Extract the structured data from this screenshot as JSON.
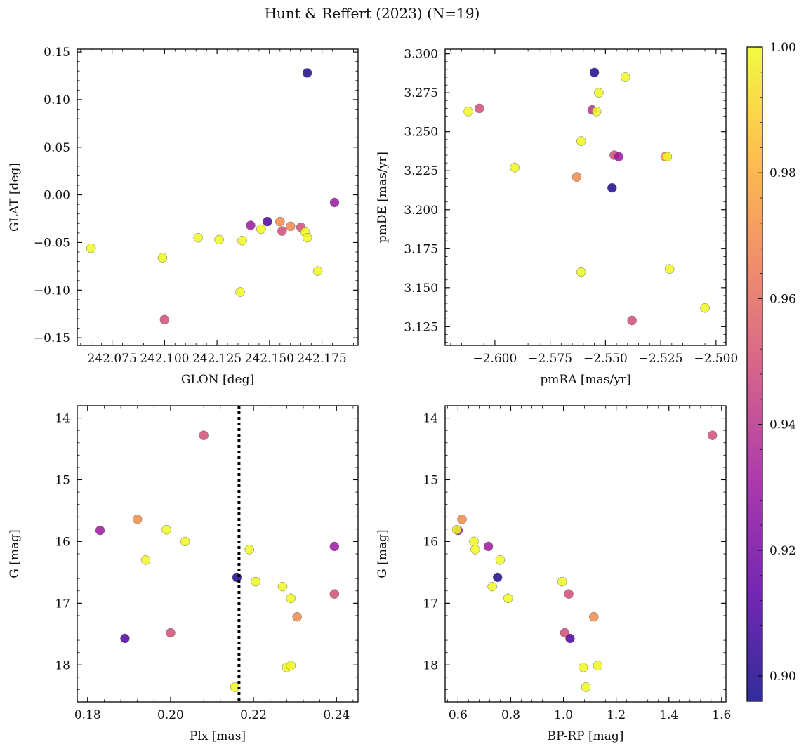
{
  "figure": {
    "title": "Hunt & Reffert (2023) (N=19)"
  },
  "colorbar": {
    "min": 0.896,
    "max": 1.0,
    "ticks": [
      0.9,
      0.92,
      0.94,
      0.96,
      0.98,
      1.0
    ],
    "tick_labels": [
      "0.90",
      "0.92",
      "0.94",
      "0.96",
      "0.98",
      "1.00"
    ],
    "colormap": "plasma",
    "stops": [
      "#0d0887",
      "#5c01a6",
      "#9c179e",
      "#cc4778",
      "#ed7953",
      "#fdb42f",
      "#f0f921"
    ]
  },
  "chart_data": [
    {
      "type": "scatter",
      "xlabel": "GLON [deg]",
      "ylabel": "GLAT [deg]",
      "xlim": [
        242.0584,
        242.1922
      ],
      "ylim": [
        -0.158,
        0.153
      ],
      "xticks": [
        242.075,
        242.1,
        242.125,
        242.15,
        242.175
      ],
      "xtick_labels": [
        "242.075",
        "242.100",
        "242.125",
        "242.150",
        "242.175"
      ],
      "yticks": [
        -0.15,
        -0.1,
        -0.05,
        0.0,
        0.05,
        0.1,
        0.15
      ],
      "ytick_labels": [
        "−0.15",
        "−0.10",
        "−0.05",
        "0.00",
        "0.05",
        "0.10",
        "0.15"
      ],
      "x": [
        242.168,
        242.065,
        242.099,
        242.116,
        242.126,
        242.137,
        242.136,
        242.146,
        242.149,
        242.141,
        242.155,
        242.156,
        242.16,
        242.165,
        242.167,
        242.168,
        242.173,
        242.181,
        242.1
      ],
      "y": [
        0.128,
        -0.056,
        -0.066,
        -0.045,
        -0.047,
        -0.048,
        -0.102,
        -0.036,
        -0.028,
        -0.032,
        -0.028,
        -0.038,
        -0.033,
        -0.034,
        -0.039,
        -0.045,
        -0.08,
        -0.008,
        -0.131
      ],
      "c": [
        0.9,
        1.0,
        1.0,
        1.0,
        1.0,
        1.0,
        1.0,
        1.0,
        0.91,
        0.93,
        0.97,
        0.95,
        0.97,
        0.95,
        1.0,
        1.0,
        1.0,
        0.93,
        0.95
      ]
    },
    {
      "type": "scatter",
      "xlabel": "pmRA [mas/yr]",
      "ylabel": "pmDE [mas/yr]",
      "xlim": [
        -2.6225,
        -2.4955
      ],
      "ylim": [
        3.113,
        3.303
      ],
      "xticks": [
        -2.6,
        -2.575,
        -2.55,
        -2.525,
        -2.5
      ],
      "xtick_labels": [
        "−2.600",
        "−2.575",
        "−2.550",
        "−2.525",
        "−2.500"
      ],
      "yticks": [
        3.125,
        3.15,
        3.175,
        3.2,
        3.225,
        3.25,
        3.275,
        3.3
      ],
      "ytick_labels": [
        "3.125",
        "3.150",
        "3.175",
        "3.200",
        "3.225",
        "3.250",
        "3.275",
        "3.300"
      ],
      "x": [
        -2.555,
        -2.612,
        -2.607,
        -2.591,
        -2.561,
        -2.556,
        -2.553,
        -2.554,
        -2.541,
        -2.546,
        -2.544,
        -2.523,
        -2.522,
        -2.563,
        -2.547,
        -2.561,
        -2.521,
        -2.505,
        -2.538
      ],
      "y": [
        3.288,
        3.263,
        3.265,
        3.227,
        3.244,
        3.264,
        3.275,
        3.263,
        3.285,
        3.235,
        3.234,
        3.234,
        3.234,
        3.221,
        3.214,
        3.16,
        3.162,
        3.137,
        3.129
      ],
      "c": [
        0.9,
        1.0,
        0.95,
        1.0,
        1.0,
        0.94,
        1.0,
        1.0,
        1.0,
        0.95,
        0.93,
        0.97,
        1.0,
        0.97,
        0.9,
        1.0,
        1.0,
        1.0,
        0.95
      ]
    },
    {
      "type": "scatter",
      "xlabel": "Plx [mas]",
      "ylabel": "G [mag]",
      "xlim": [
        0.1775,
        0.2452
      ],
      "ylim": [
        18.6,
        13.8
      ],
      "yinverted": true,
      "xticks": [
        0.18,
        0.2,
        0.22,
        0.24
      ],
      "xtick_labels": [
        "0.18",
        "0.20",
        "0.22",
        "0.24"
      ],
      "yticks": [
        14,
        15,
        16,
        17,
        18
      ],
      "ytick_labels": [
        "14",
        "15",
        "16",
        "17",
        "18"
      ],
      "vline": 0.2165,
      "x": [
        0.208,
        0.183,
        0.192,
        0.199,
        0.2035,
        0.194,
        0.189,
        0.2,
        0.216,
        0.219,
        0.2205,
        0.227,
        0.229,
        0.2305,
        0.2395,
        0.2395,
        0.228,
        0.229,
        0.2155
      ],
      "y": [
        14.28,
        15.82,
        15.64,
        15.81,
        16.0,
        16.3,
        17.57,
        17.48,
        16.58,
        16.13,
        16.65,
        16.73,
        16.92,
        17.22,
        16.08,
        16.85,
        18.04,
        18.01,
        18.36
      ],
      "c": [
        0.95,
        0.93,
        0.97,
        1.0,
        1.0,
        1.0,
        0.91,
        0.95,
        0.9,
        1.0,
        1.0,
        1.0,
        1.0,
        0.97,
        0.93,
        0.95,
        1.0,
        1.0,
        1.0
      ]
    },
    {
      "type": "scatter",
      "xlabel": "BP-RP [mag]",
      "ylabel": "G [mag]",
      "xlim": [
        0.551,
        1.6165
      ],
      "ylim": [
        18.6,
        13.8
      ],
      "yinverted": true,
      "xticks": [
        0.6,
        0.8,
        1.0,
        1.2,
        1.4,
        1.6
      ],
      "xtick_labels": [
        "0.6",
        "0.8",
        "1.0",
        "1.2",
        "1.4",
        "1.6"
      ],
      "yticks": [
        14,
        15,
        16,
        17,
        18
      ],
      "ytick_labels": [
        "14",
        "15",
        "16",
        "17",
        "18"
      ],
      "x": [
        1.565,
        0.6,
        0.615,
        0.66,
        0.665,
        0.715,
        0.76,
        0.75,
        0.73,
        0.79,
        0.995,
        1.02,
        1.115,
        1.005,
        1.025,
        1.075,
        1.13,
        1.085,
        0.595
      ],
      "y": [
        14.28,
        15.82,
        15.64,
        16.0,
        16.13,
        16.08,
        16.3,
        16.58,
        16.73,
        16.92,
        16.65,
        16.85,
        17.22,
        17.48,
        17.57,
        18.04,
        18.01,
        18.36,
        15.81
      ],
      "c": [
        0.95,
        0.93,
        0.97,
        1.0,
        1.0,
        0.93,
        1.0,
        0.9,
        1.0,
        1.0,
        1.0,
        0.95,
        0.97,
        0.95,
        0.91,
        1.0,
        1.0,
        1.0,
        1.0
      ]
    }
  ]
}
